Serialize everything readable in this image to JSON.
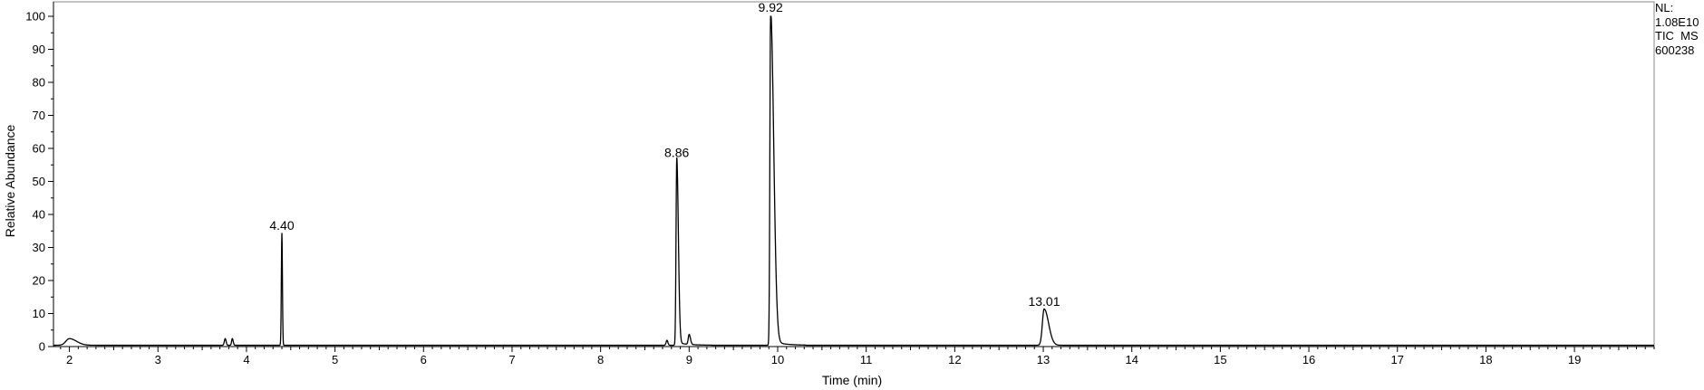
{
  "info": {
    "nl_label": "NL:",
    "nl_value": "1.08E10",
    "trace_label": "TIC  MS",
    "sample_id": "600238"
  },
  "chart_data": {
    "type": "line",
    "title": "",
    "xlabel": "Time (min)",
    "ylabel": "Relative Abundance",
    "xlim": [
      1.82,
      19.9
    ],
    "ylim": [
      0,
      100
    ],
    "x_ticks": [
      2,
      3,
      4,
      5,
      6,
      7,
      8,
      9,
      10,
      11,
      12,
      13,
      14,
      15,
      16,
      17,
      18,
      19
    ],
    "y_ticks": [
      0,
      10,
      20,
      30,
      40,
      50,
      60,
      70,
      80,
      90,
      100
    ],
    "grid": false,
    "legend": "none",
    "line_color": "#000000",
    "peaks": [
      {
        "x": 2.0,
        "y": 2,
        "width": 0.04,
        "tail": 0.08,
        "label": ""
      },
      {
        "x": 3.76,
        "y": 2,
        "width": 0.01,
        "tail": 0.01,
        "label": ""
      },
      {
        "x": 3.84,
        "y": 2,
        "width": 0.008,
        "tail": 0.01,
        "label": ""
      },
      {
        "x": 4.4,
        "y": 34,
        "width": 0.006,
        "tail": 0.006,
        "label": "4.40"
      },
      {
        "x": 8.75,
        "y": 1.5,
        "width": 0.01,
        "tail": 0.01,
        "label": ""
      },
      {
        "x": 8.86,
        "y": 56,
        "width": 0.008,
        "tail": 0.018,
        "label": "8.86"
      },
      {
        "x": 9.0,
        "y": 3,
        "width": 0.01,
        "tail": 0.015,
        "label": ""
      },
      {
        "x": 9.92,
        "y": 100,
        "width": 0.008,
        "tail": 0.035,
        "label": "9.92"
      },
      {
        "x": 13.01,
        "y": 11,
        "width": 0.02,
        "tail": 0.05,
        "label": "13.01"
      }
    ]
  }
}
